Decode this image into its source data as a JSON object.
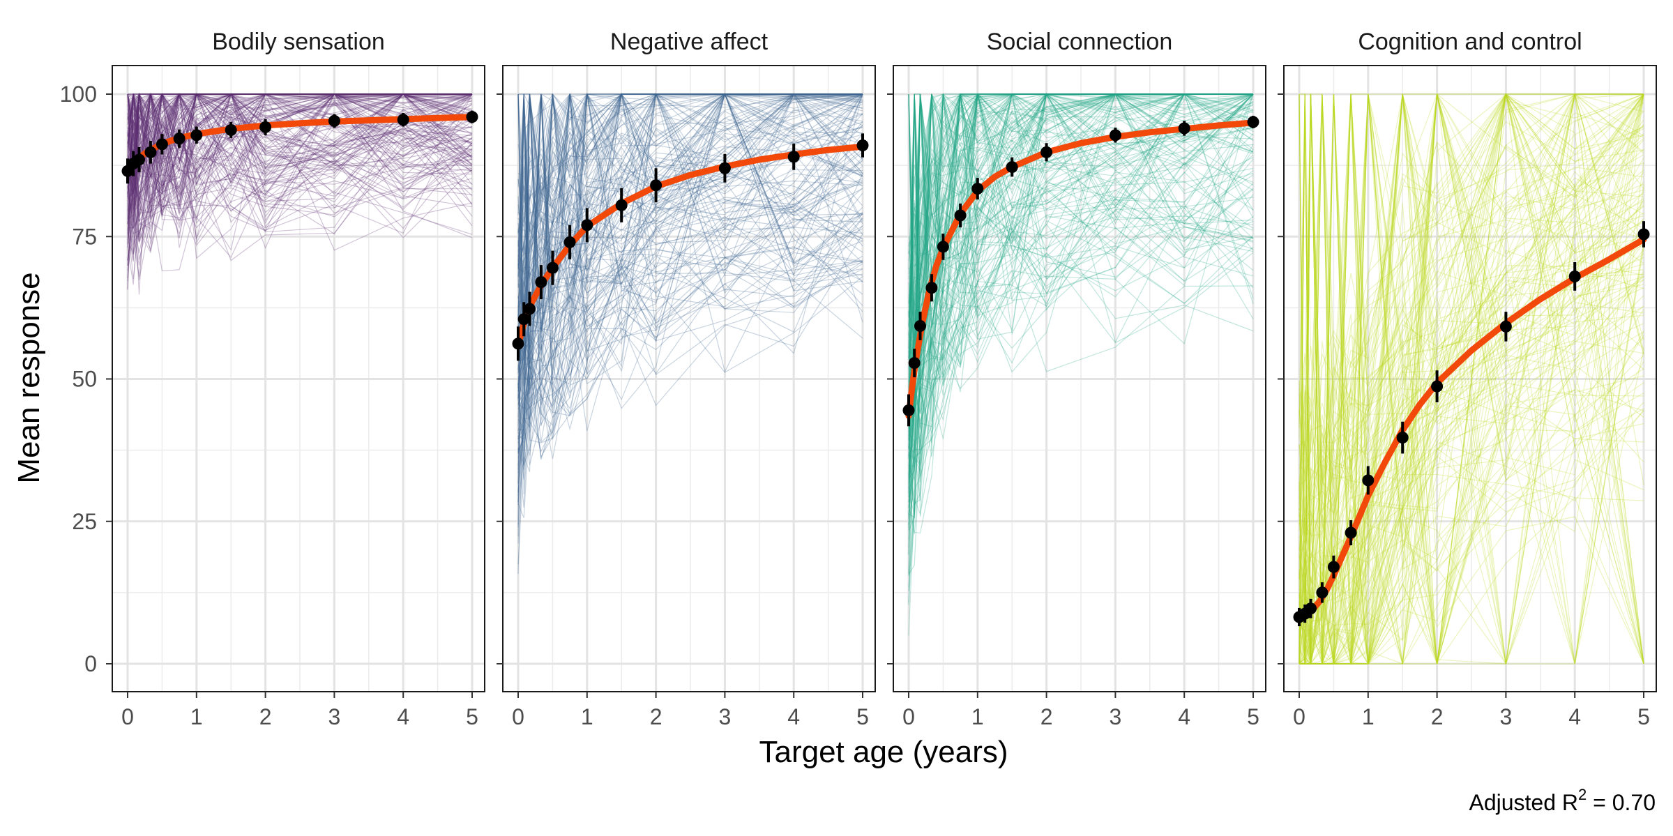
{
  "chart_data": {
    "type": "line",
    "xlabel": "Target age (years)",
    "ylabel": "Mean response",
    "xlim": [
      -0.2,
      5.2
    ],
    "ylim": [
      -5,
      100
    ],
    "x_ticks": [
      0,
      1,
      2,
      3,
      4,
      5
    ],
    "y_ticks": [
      0,
      25,
      50,
      75,
      100
    ],
    "grid": true,
    "annotation": {
      "prefix": "Adjusted R",
      "sup": "2",
      "suffix": " = 0.70"
    },
    "fit_color": "#F2480A",
    "point_color": "#000000",
    "x": [
      0,
      0.083,
      0.167,
      0.333,
      0.5,
      0.75,
      1,
      1.5,
      2,
      3,
      4,
      5
    ],
    "panels": [
      {
        "title": "Bodily sensation",
        "color": "#5B2A6E",
        "series": [
          {
            "name": "Fitted curve",
            "x": [
              0,
              0.25,
              0.5,
              0.75,
              1,
              1.5,
              2,
              2.5,
              3,
              3.5,
              4,
              4.5,
              5
            ],
            "values": [
              87,
              89.6,
              91.3,
              92.3,
              93,
              93.9,
              94.5,
              94.9,
              95.2,
              95.4,
              95.6,
              95.8,
              96
            ]
          },
          {
            "name": "Means",
            "values": [
              86.5,
              87.8,
              88.5,
              89.8,
              91.2,
              92.2,
              92.8,
              93.7,
              94.2,
              95.3,
              95.5,
              96
            ],
            "errors": [
              2.2,
              2.2,
              2.2,
              2.0,
              1.8,
              1.6,
              1.5,
              1.4,
              1.4,
              1.2,
              1.2,
              1.1
            ]
          }
        ]
      },
      {
        "title": "Negative affect",
        "color": "#3E6491",
        "series": [
          {
            "name": "Fitted curve",
            "x": [
              0,
              0.1,
              0.2,
              0.35,
              0.5,
              0.75,
              1,
              1.5,
              2,
              2.5,
              3,
              3.5,
              4,
              4.5,
              5
            ],
            "values": [
              56,
              60.5,
              63.5,
              66.8,
              69.5,
              73.5,
              76.8,
              80.8,
              83.8,
              85.8,
              87.3,
              88.5,
              89.4,
              90.2,
              90.8
            ]
          },
          {
            "name": "Means",
            "values": [
              56.2,
              60.5,
              62.3,
              67,
              69.5,
              74,
              77,
              80.5,
              84,
              87,
              89,
              91
            ],
            "errors": [
              3,
              3,
              3,
              3,
              3,
              3,
              3,
              3,
              3,
              2.5,
              2.3,
              2.1
            ]
          }
        ]
      },
      {
        "title": "Social connection",
        "color": "#20A484",
        "series": [
          {
            "name": "Fitted curve",
            "x": [
              0,
              0.05,
              0.1,
              0.2,
              0.3,
              0.4,
              0.5,
              0.75,
              1,
              1.25,
              1.5,
              2,
              2.5,
              3,
              3.5,
              4,
              4.5,
              5
            ],
            "values": [
              43.5,
              48.5,
              53,
              60,
              65.5,
              69.8,
              73,
              79,
              83,
              85.5,
              87.2,
              89.8,
              91.4,
              92.5,
              93.3,
              93.9,
              94.5,
              95
            ]
          },
          {
            "name": "Means",
            "values": [
              44.5,
              52.8,
              59.3,
              66,
              73.2,
              78.7,
              83.4,
              87.2,
              89.8,
              92.8,
              94,
              95.1
            ],
            "errors": [
              2.8,
              2.5,
              2.5,
              2.4,
              2.3,
              2.1,
              1.9,
              1.7,
              1.6,
              1.3,
              1.3,
              1.1
            ]
          }
        ]
      },
      {
        "title": "Cognition and control",
        "color": "#B9D61C",
        "series": [
          {
            "name": "Fitted curve",
            "x": [
              0,
              0.1,
              0.2,
              0.3,
              0.4,
              0.5,
              0.75,
              1,
              1.25,
              1.5,
              1.75,
              2,
              2.5,
              3,
              3.5,
              4,
              4.5,
              5
            ],
            "values": [
              8,
              8.6,
              9.6,
              11,
              13,
              15.5,
              22.3,
              29.5,
              35.5,
              41,
              45.5,
              49.3,
              55,
              59.8,
              64,
              67.7,
              71,
              74.5
            ]
          },
          {
            "name": "Means",
            "values": [
              8.2,
              8.8,
              9.7,
              12.5,
              17,
              23,
              32.2,
              39.7,
              48.7,
              59.2,
              68,
              75.4
            ],
            "errors": [
              1.6,
              1.6,
              1.7,
              1.8,
              2.0,
              2.2,
              2.5,
              2.8,
              2.8,
              2.6,
              2.5,
              2.3
            ]
          }
        ]
      }
    ]
  }
}
